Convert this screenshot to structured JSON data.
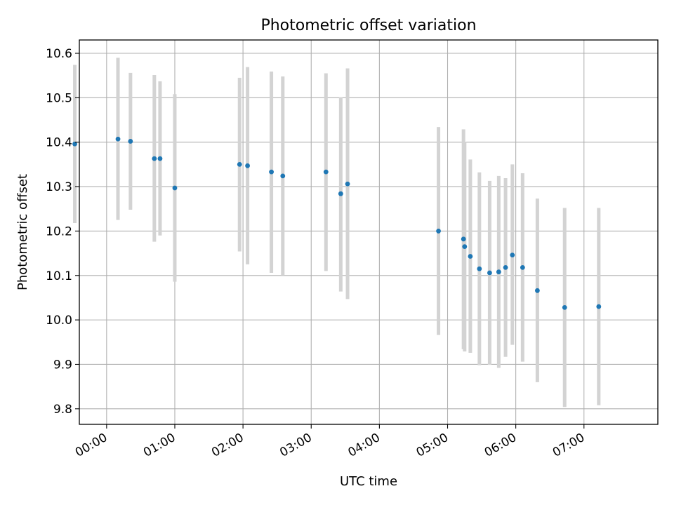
{
  "colors": {
    "point": "#1f77b4",
    "errorbar": "#d3d3d3",
    "grid": "#b0b0b0",
    "frame": "#000000"
  },
  "chart_data": {
    "type": "scatter",
    "title": "Photometric offset variation",
    "xlabel": "UTC time",
    "ylabel": "Photometric offset",
    "grid": true,
    "x_unit": "UTC time (HH:MM)",
    "xlim": [
      "23:36",
      "08:05"
    ],
    "ylim": [
      9.765,
      10.63
    ],
    "xticks": [
      "00:00",
      "01:00",
      "02:00",
      "03:00",
      "04:00",
      "05:00",
      "06:00",
      "07:00"
    ],
    "yticks": [
      "9.8",
      "9.9",
      "10.0",
      "10.1",
      "10.2",
      "10.3",
      "10.4",
      "10.5",
      "10.6"
    ],
    "series": [
      {
        "marker": "point",
        "error_bars": "vertical",
        "points": [
          {
            "t": "23:32",
            "y": 10.396,
            "lo": 10.218,
            "hi": 10.574
          },
          {
            "t": "00:10",
            "y": 10.407,
            "lo": 10.225,
            "hi": 10.59
          },
          {
            "t": "00:21",
            "y": 10.402,
            "lo": 10.248,
            "hi": 10.556
          },
          {
            "t": "00:42",
            "y": 10.363,
            "lo": 10.176,
            "hi": 10.551
          },
          {
            "t": "00:47",
            "y": 10.363,
            "lo": 10.19,
            "hi": 10.537
          },
          {
            "t": "01:00",
            "y": 10.297,
            "lo": 10.086,
            "hi": 10.508
          },
          {
            "t": "01:57",
            "y": 10.35,
            "lo": 10.154,
            "hi": 10.545
          },
          {
            "t": "02:04",
            "y": 10.347,
            "lo": 10.125,
            "hi": 10.569
          },
          {
            "t": "02:25",
            "y": 10.333,
            "lo": 10.106,
            "hi": 10.559
          },
          {
            "t": "02:35",
            "y": 10.324,
            "lo": 10.1,
            "hi": 10.548
          },
          {
            "t": "03:13",
            "y": 10.333,
            "lo": 10.11,
            "hi": 10.555
          },
          {
            "t": "03:26",
            "y": 10.284,
            "lo": 10.064,
            "hi": 10.501
          },
          {
            "t": "03:32",
            "y": 10.306,
            "lo": 10.047,
            "hi": 10.566
          },
          {
            "t": "04:52",
            "y": 10.2,
            "lo": 9.966,
            "hi": 10.434
          },
          {
            "t": "05:14",
            "y": 10.182,
            "lo": 9.934,
            "hi": 10.429
          },
          {
            "t": "05:15",
            "y": 10.165,
            "lo": 9.929,
            "hi": 10.401
          },
          {
            "t": "05:20",
            "y": 10.143,
            "lo": 9.926,
            "hi": 10.361
          },
          {
            "t": "05:28",
            "y": 10.115,
            "lo": 9.898,
            "hi": 10.332
          },
          {
            "t": "05:37",
            "y": 10.106,
            "lo": 9.899,
            "hi": 10.313
          },
          {
            "t": "05:45",
            "y": 10.108,
            "lo": 9.892,
            "hi": 10.324
          },
          {
            "t": "05:51",
            "y": 10.118,
            "lo": 9.917,
            "hi": 10.319
          },
          {
            "t": "05:57",
            "y": 10.146,
            "lo": 9.944,
            "hi": 10.35
          },
          {
            "t": "06:06",
            "y": 10.118,
            "lo": 9.906,
            "hi": 10.33
          },
          {
            "t": "06:19",
            "y": 10.066,
            "lo": 9.86,
            "hi": 10.273
          },
          {
            "t": "06:43",
            "y": 10.028,
            "lo": 9.804,
            "hi": 10.252
          },
          {
            "t": "07:13",
            "y": 10.03,
            "lo": 9.808,
            "hi": 10.252
          }
        ]
      }
    ]
  }
}
